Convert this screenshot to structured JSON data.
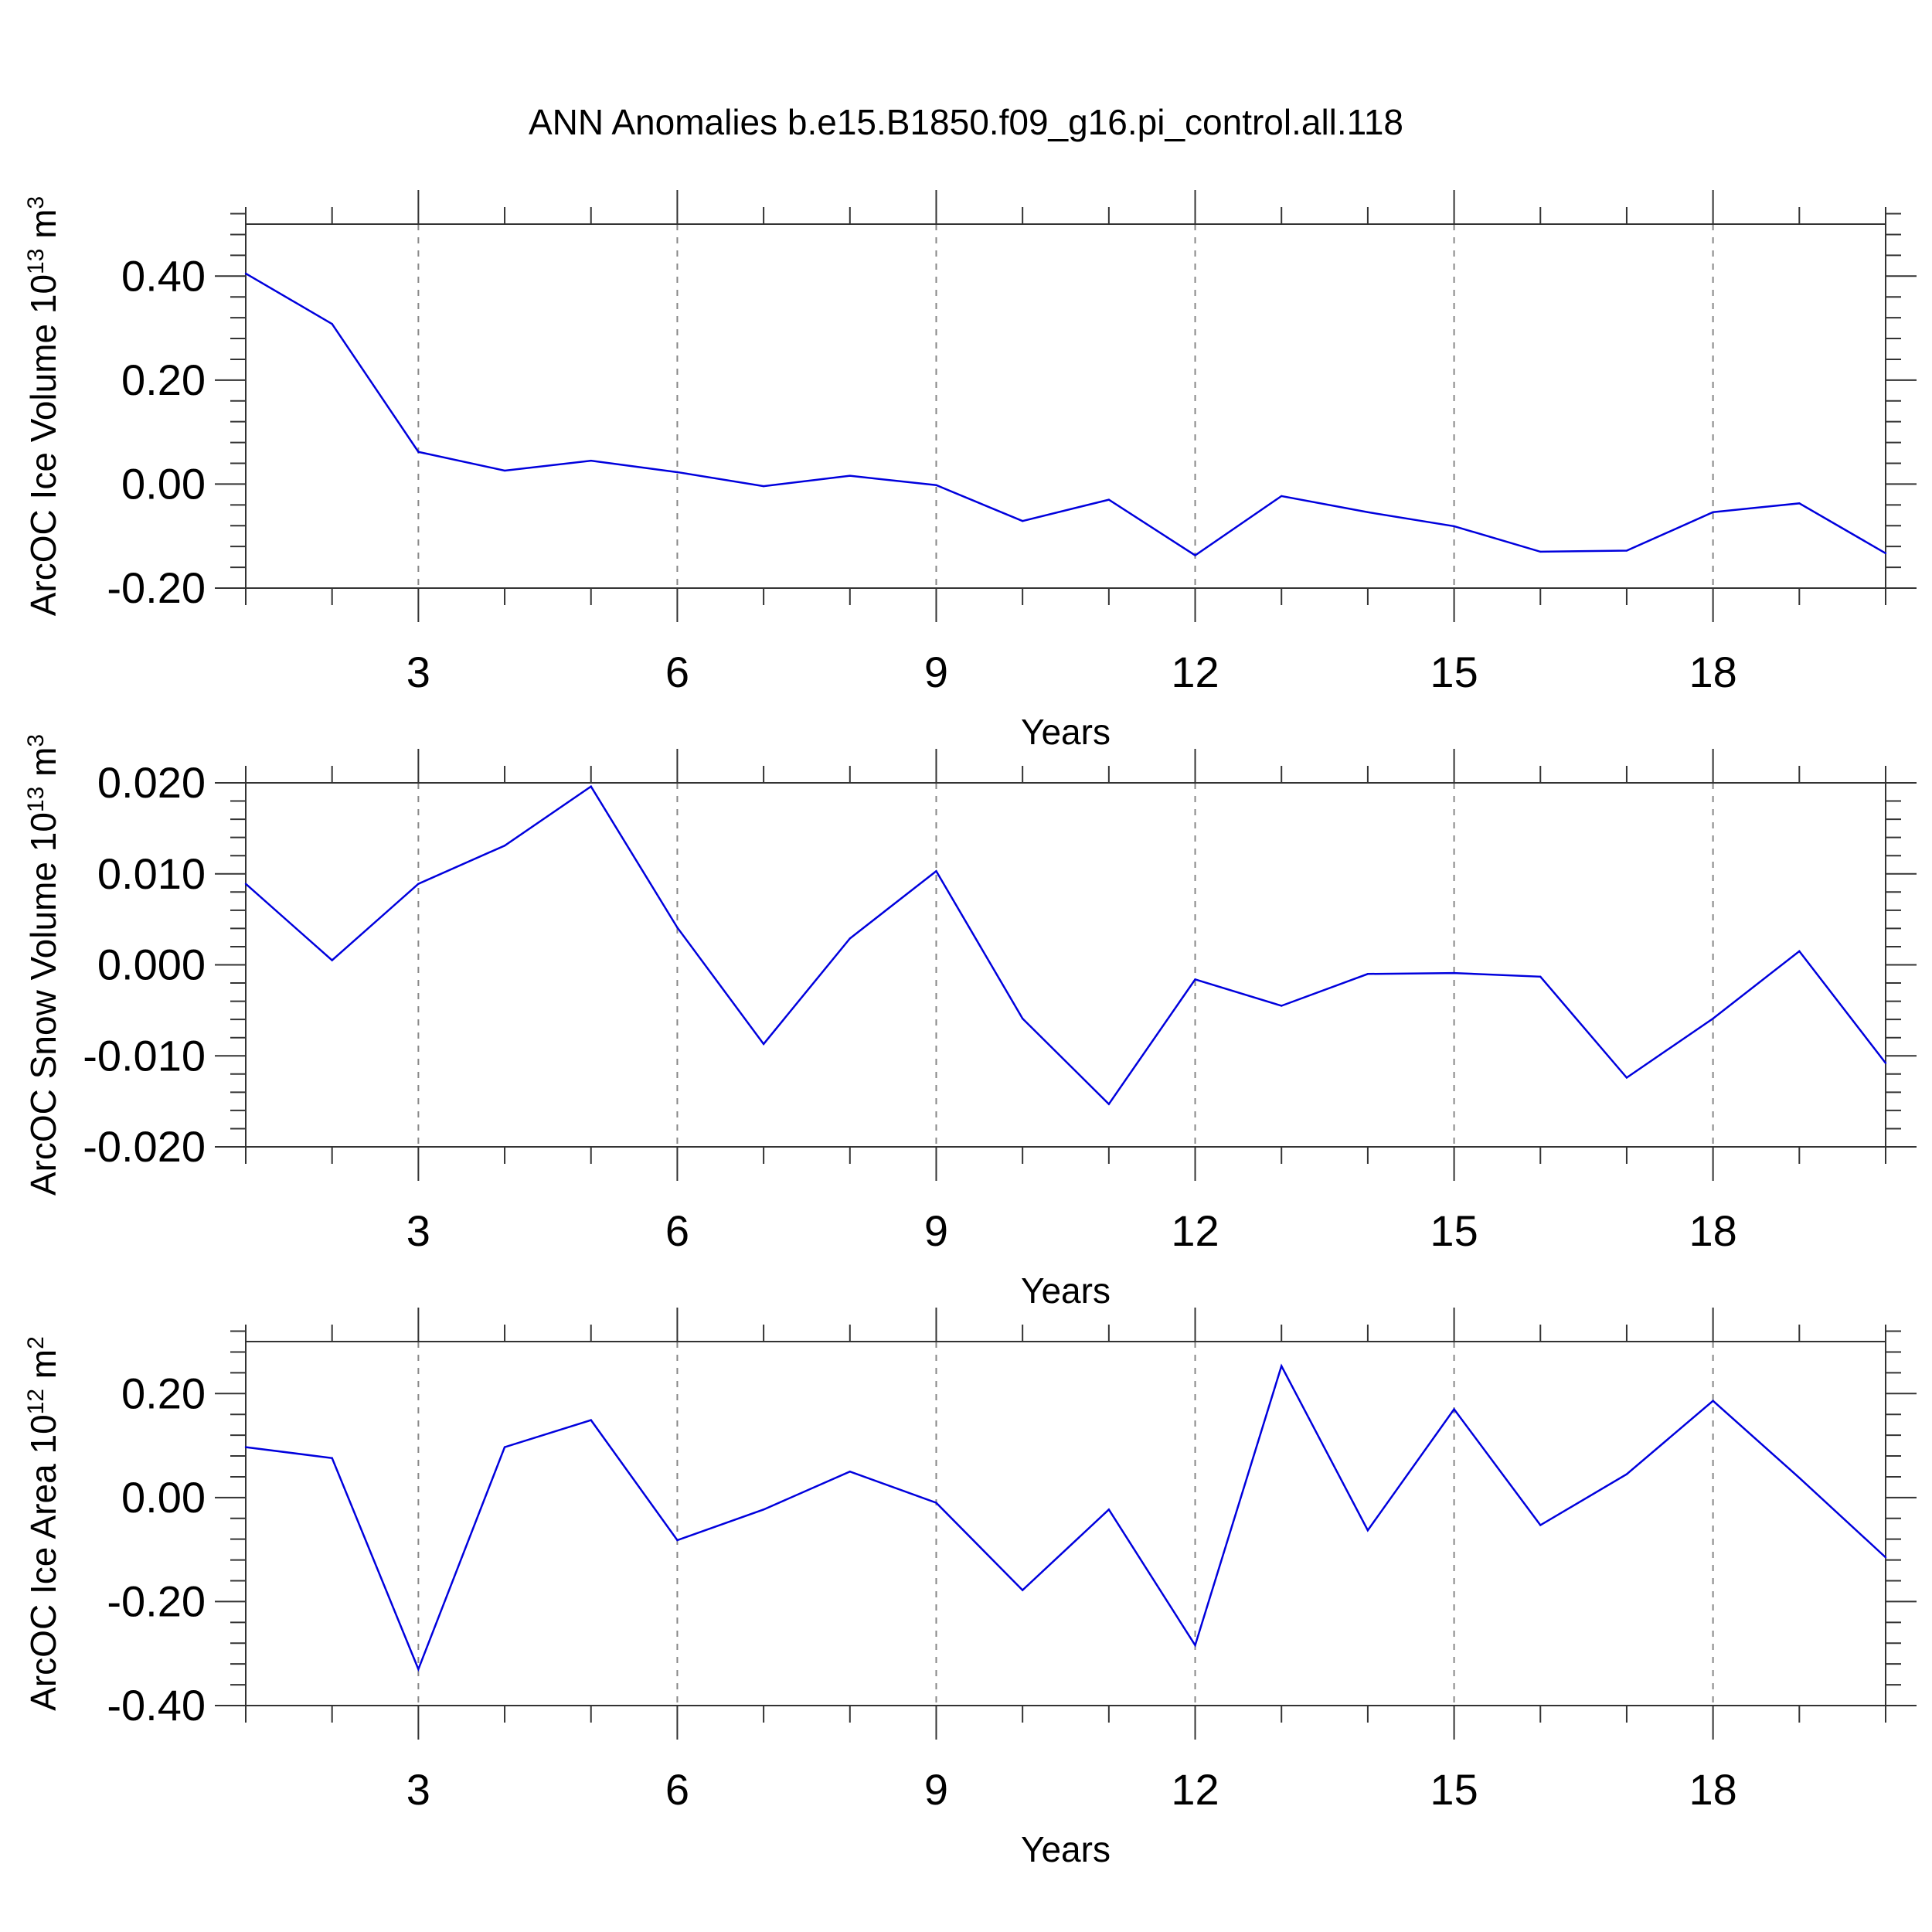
{
  "title": "ANN Anomalies b.e15.B1850.f09_g16.pi_control.all.118",
  "colors": {
    "line": "#0000dd",
    "axis": "#333333",
    "grid": "#888888"
  },
  "chart_data": [
    {
      "type": "line",
      "ylabel_base": "ArcOC Ice Volume 10",
      "ylabel_exp": "13",
      "ylabel_unit": " m",
      "ylabel_unit_exp": "3",
      "xlabel": "Years",
      "xlim": [
        1,
        20
      ],
      "ylim": [
        -0.2,
        0.5
      ],
      "yticks": [
        -0.2,
        0.0,
        0.2,
        0.4
      ],
      "ytick_labels": [
        "-0.20",
        "0.00",
        "0.20",
        "0.40"
      ],
      "xticks": [
        3,
        6,
        9,
        12,
        15,
        18
      ],
      "xtick_labels": [
        "3",
        "6",
        "9",
        "12",
        "15",
        "18"
      ],
      "grid_x": true,
      "x": [
        1,
        2,
        3,
        4,
        5,
        6,
        7,
        8,
        9,
        10,
        11,
        12,
        13,
        14,
        15,
        16,
        17,
        18,
        19,
        20
      ],
      "series": [
        {
          "name": "ArcOC Ice Volume",
          "values": [
            0.405,
            0.308,
            0.062,
            0.026,
            0.045,
            0.023,
            -0.004,
            0.016,
            -0.002,
            -0.071,
            -0.03,
            -0.137,
            -0.023,
            -0.054,
            -0.081,
            -0.13,
            -0.128,
            -0.054,
            -0.037,
            -0.133
          ]
        }
      ]
    },
    {
      "type": "line",
      "ylabel_base": "ArcOC Snow Volume 10",
      "ylabel_exp": "13",
      "ylabel_unit": " m",
      "ylabel_unit_exp": "3",
      "xlabel": "Years",
      "xlim": [
        1,
        20
      ],
      "ylim": [
        -0.02,
        0.02
      ],
      "yticks": [
        -0.02,
        -0.01,
        0.0,
        0.01,
        0.02
      ],
      "ytick_labels": [
        "-0.020",
        "-0.010",
        "0.000",
        "0.010",
        "0.020"
      ],
      "xticks": [
        3,
        6,
        9,
        12,
        15,
        18
      ],
      "xtick_labels": [
        "3",
        "6",
        "9",
        "12",
        "15",
        "18"
      ],
      "grid_x": true,
      "x": [
        1,
        2,
        3,
        4,
        5,
        6,
        7,
        8,
        9,
        10,
        11,
        12,
        13,
        14,
        15,
        16,
        17,
        18,
        19,
        20
      ],
      "series": [
        {
          "name": "ArcOC Snow Volume",
          "values": [
            0.0089,
            0.0005,
            0.0089,
            0.0131,
            0.0196,
            0.0041,
            -0.0087,
            0.0029,
            0.0103,
            -0.0059,
            -0.0153,
            -0.0016,
            -0.0045,
            -0.001,
            -0.0009,
            -0.0013,
            -0.0124,
            -0.0059,
            0.0015,
            -0.0108
          ]
        }
      ]
    },
    {
      "type": "line",
      "ylabel_base": "ArcOC Ice Area 10",
      "ylabel_exp": "12",
      "ylabel_unit": " m",
      "ylabel_unit_exp": "2",
      "xlabel": "Years",
      "xlim": [
        1,
        20
      ],
      "ylim": [
        -0.4,
        0.3
      ],
      "yticks": [
        -0.4,
        -0.2,
        0.0,
        0.2
      ],
      "ytick_labels": [
        "-0.40",
        "-0.20",
        "0.00",
        "0.20"
      ],
      "xticks": [
        3,
        6,
        9,
        12,
        15,
        18
      ],
      "xtick_labels": [
        "3",
        "6",
        "9",
        "12",
        "15",
        "18"
      ],
      "grid_x": true,
      "x": [
        1,
        2,
        3,
        4,
        5,
        6,
        7,
        8,
        9,
        10,
        11,
        12,
        13,
        14,
        15,
        16,
        17,
        18,
        19,
        20
      ],
      "series": [
        {
          "name": "ArcOC Ice Area",
          "values": [
            0.097,
            0.076,
            -0.33,
            0.097,
            0.149,
            -0.082,
            -0.023,
            0.05,
            -0.01,
            -0.178,
            -0.023,
            -0.284,
            0.253,
            -0.063,
            0.17,
            -0.053,
            0.045,
            0.186,
            0.038,
            -0.115
          ]
        }
      ]
    }
  ]
}
